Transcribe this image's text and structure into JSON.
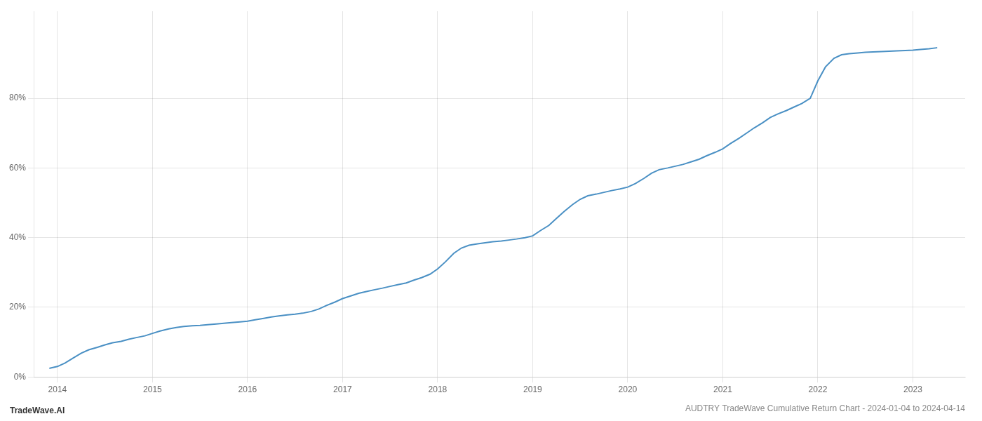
{
  "chart_data": {
    "type": "line",
    "title": "AUDTRY TradeWave Cumulative Return Chart - 2024-01-04 to 2024-04-14",
    "annotations": [
      "TradeWave.AI"
    ],
    "color": "#4a90c4",
    "grid": true,
    "x": [
      2013.92,
      2014.0,
      2014.08,
      2014.17,
      2014.25,
      2014.33,
      2014.42,
      2014.5,
      2014.58,
      2014.67,
      2014.75,
      2014.83,
      2014.92,
      2015.0,
      2015.08,
      2015.17,
      2015.25,
      2015.33,
      2015.42,
      2015.5,
      2015.58,
      2015.67,
      2015.75,
      2015.83,
      2015.92,
      2016.0,
      2016.08,
      2016.17,
      2016.25,
      2016.33,
      2016.42,
      2016.5,
      2016.58,
      2016.67,
      2016.75,
      2016.83,
      2016.92,
      2017.0,
      2017.08,
      2017.17,
      2017.25,
      2017.33,
      2017.42,
      2017.5,
      2017.58,
      2017.67,
      2017.75,
      2017.83,
      2017.92,
      2018.0,
      2018.08,
      2018.17,
      2018.25,
      2018.33,
      2018.42,
      2018.5,
      2018.58,
      2018.67,
      2018.75,
      2018.83,
      2018.92,
      2019.0,
      2019.08,
      2019.17,
      2019.25,
      2019.33,
      2019.42,
      2019.5,
      2019.58,
      2019.67,
      2019.75,
      2019.83,
      2019.92,
      2020.0,
      2020.08,
      2020.17,
      2020.25,
      2020.33,
      2020.42,
      2020.5,
      2020.58,
      2020.67,
      2020.75,
      2020.83,
      2020.92,
      2021.0,
      2021.08,
      2021.17,
      2021.25,
      2021.33,
      2021.42,
      2021.5,
      2021.58,
      2021.67,
      2021.75,
      2021.83,
      2021.92,
      2022.0,
      2022.08,
      2022.17,
      2022.25,
      2022.33,
      2022.42,
      2022.5,
      2022.58,
      2022.67,
      2022.75,
      2022.83,
      2022.92,
      2023.0,
      2023.08,
      2023.17,
      2023.25
    ],
    "values": [
      2.5,
      3.0,
      4.0,
      5.5,
      6.8,
      7.8,
      8.5,
      9.2,
      9.8,
      10.2,
      10.8,
      11.3,
      11.8,
      12.5,
      13.2,
      13.8,
      14.2,
      14.5,
      14.7,
      14.8,
      15.0,
      15.2,
      15.4,
      15.6,
      15.8,
      16.0,
      16.4,
      16.8,
      17.2,
      17.5,
      17.8,
      18.0,
      18.3,
      18.8,
      19.5,
      20.5,
      21.5,
      22.5,
      23.2,
      24.0,
      24.5,
      25.0,
      25.5,
      26.0,
      26.5,
      27.0,
      27.8,
      28.5,
      29.5,
      31.0,
      33.0,
      35.5,
      37.0,
      37.8,
      38.2,
      38.5,
      38.8,
      39.0,
      39.3,
      39.6,
      40.0,
      40.5,
      42.0,
      43.5,
      45.5,
      47.5,
      49.5,
      51.0,
      52.0,
      52.5,
      53.0,
      53.5,
      54.0,
      54.5,
      55.5,
      57.0,
      58.5,
      59.5,
      60.0,
      60.5,
      61.0,
      61.8,
      62.5,
      63.5,
      64.5,
      65.5,
      67.0,
      68.5,
      70.0,
      71.5,
      73.0,
      74.5,
      75.5,
      76.5,
      77.5,
      78.5,
      80.0,
      85.0,
      89.0,
      91.5,
      92.5,
      92.8,
      93.0,
      93.2,
      93.3,
      93.4,
      93.5,
      93.6,
      93.7,
      93.8,
      94.0,
      94.2,
      94.5
    ],
    "xlim": [
      2013.75,
      2023.55
    ],
    "xticks": [
      2014,
      2015,
      2016,
      2017,
      2018,
      2019,
      2020,
      2021,
      2022,
      2023
    ],
    "ylim": [
      0,
      105
    ],
    "yticks": [
      {
        "value": 0,
        "label": "0%"
      },
      {
        "value": 20,
        "label": "20%"
      },
      {
        "value": 40,
        "label": "40%"
      },
      {
        "value": 60,
        "label": "60%"
      },
      {
        "value": 80,
        "label": "80%"
      }
    ]
  }
}
